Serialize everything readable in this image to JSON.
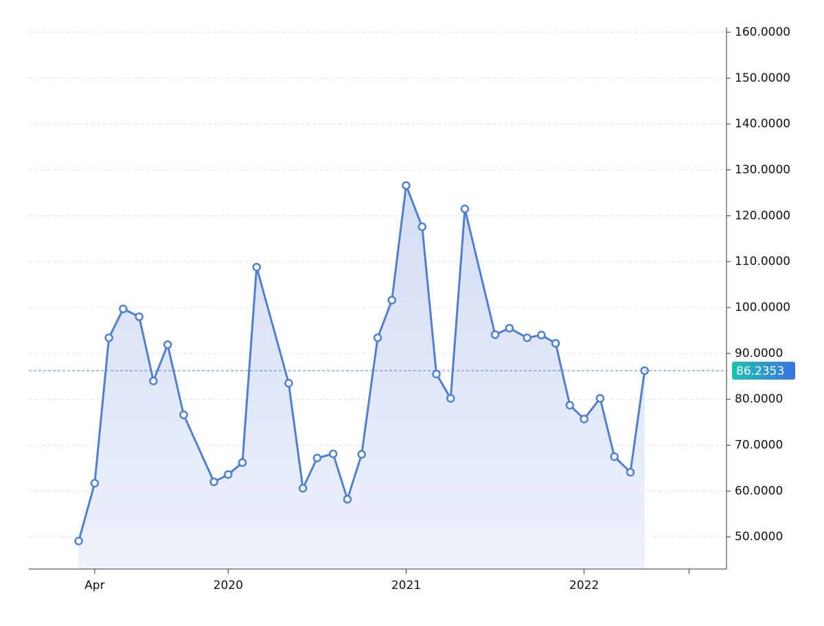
{
  "chart_data": {
    "type": "area",
    "x": [
      2019.16,
      2019.25,
      2019.33,
      2019.41,
      2019.5,
      2019.58,
      2019.66,
      2019.75,
      2019.92,
      2020.0,
      2020.08,
      2020.16,
      2020.34,
      2020.42,
      2020.5,
      2020.59,
      2020.67,
      2020.75,
      2020.84,
      2020.92,
      2021.0,
      2021.09,
      2021.17,
      2021.25,
      2021.33,
      2021.5,
      2021.58,
      2021.68,
      2021.76,
      2021.84,
      2021.92,
      2022.0,
      2022.09,
      2022.17,
      2022.26,
      2022.34
    ],
    "series": [
      {
        "color": "#4f7fd1",
        "values": [
          49.1,
          61.7,
          93.4,
          99.7,
          98.0,
          84.0,
          91.9,
          76.6,
          62.0,
          63.6,
          66.2,
          108.8,
          83.5,
          60.6,
          67.2,
          68.1,
          58.2,
          68.0,
          93.4,
          101.6,
          126.6,
          117.6,
          85.5,
          80.2,
          121.5,
          94.1,
          95.5,
          93.4,
          94.0,
          92.2,
          78.7,
          75.7,
          80.2,
          67.5,
          64.1,
          86.2353
        ]
      }
    ],
    "xlim": [
      2018.88,
      2022.8
    ],
    "xticks": [
      {
        "value": 2019.25,
        "label": "Apr"
      },
      {
        "value": 2020,
        "label": "2020"
      },
      {
        "value": 2021,
        "label": "2021"
      },
      {
        "value": 2022,
        "label": "2022"
      },
      {
        "value": 2022.59,
        "label": null
      }
    ],
    "ylim": [
      43,
      160
    ],
    "yticks": [
      {
        "value": 50,
        "label": "50.0000"
      },
      {
        "value": 60,
        "label": "60.0000"
      },
      {
        "value": 70,
        "label": "70.0000"
      },
      {
        "value": 80,
        "label": "80.0000"
      },
      {
        "value": 90,
        "label": "90.0000"
      },
      {
        "value": 100,
        "label": "100.0000"
      },
      {
        "value": 110,
        "label": "110.0000"
      },
      {
        "value": 120,
        "label": "120.0000"
      },
      {
        "value": 130,
        "label": "130.0000"
      },
      {
        "value": 140,
        "label": "140.0000"
      },
      {
        "value": 150,
        "label": "150.0000"
      },
      {
        "value": 160,
        "label": "160.0000"
      }
    ],
    "grid": true
  }
}
